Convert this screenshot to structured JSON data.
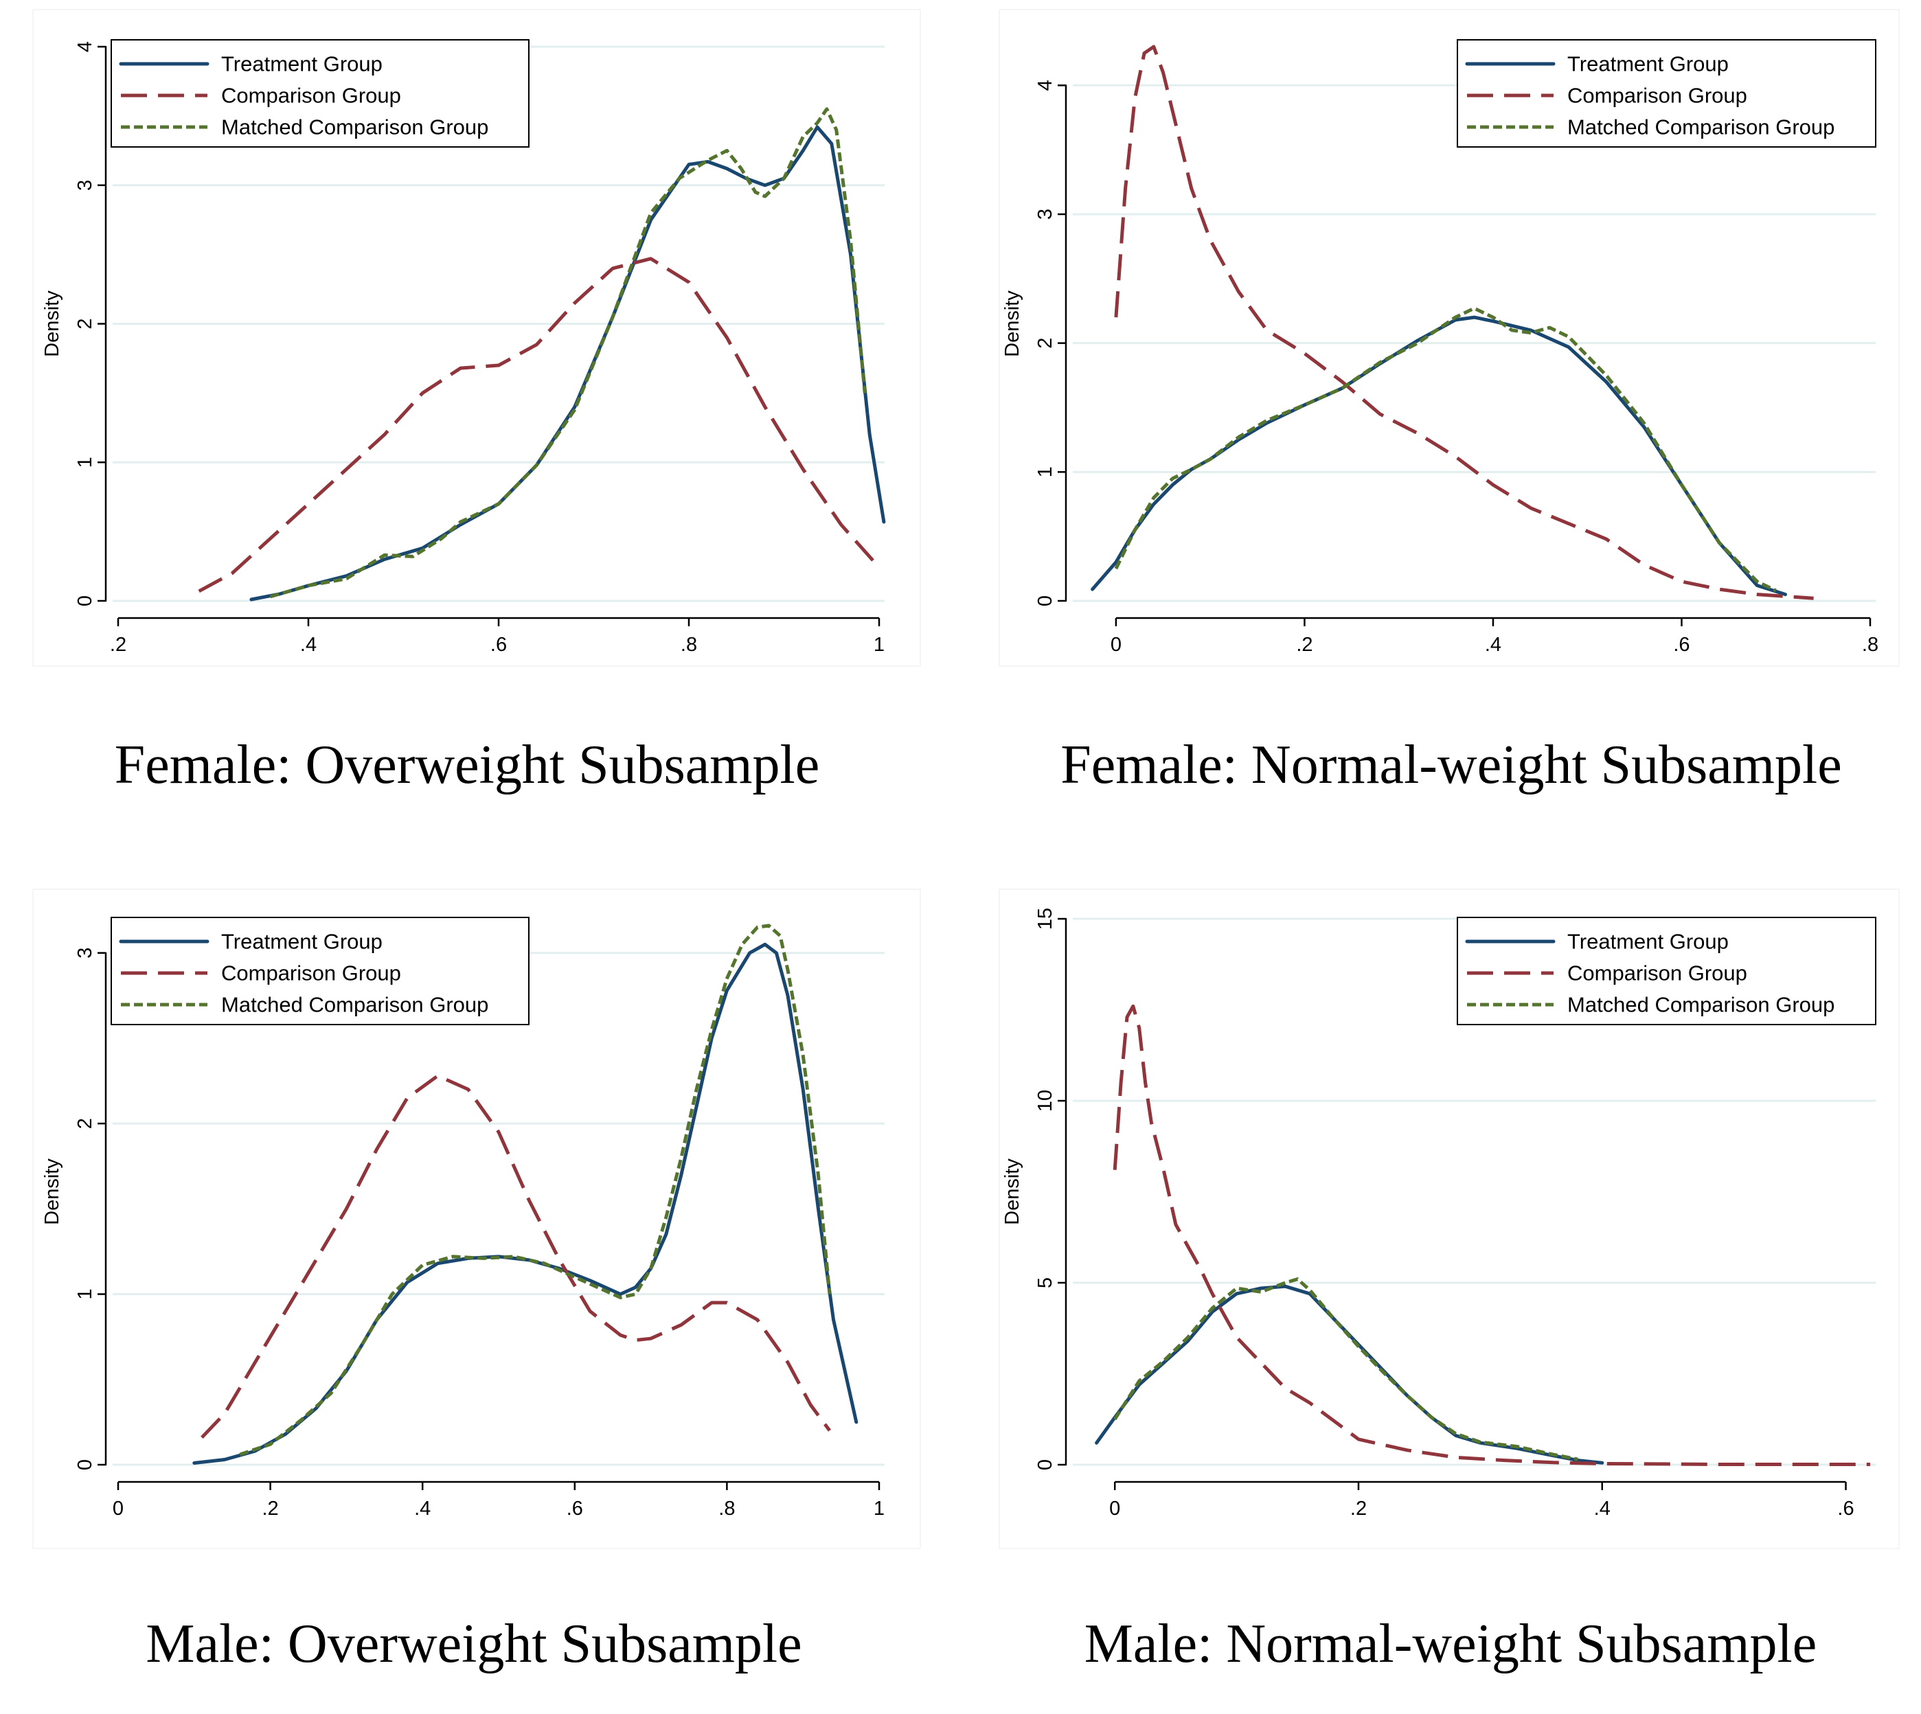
{
  "figure": {
    "background": "#ffffff",
    "gridColor": "#e3eeee"
  },
  "series_styles": [
    {
      "key": "treatment",
      "name": "Treatment Group",
      "color": "#1a476f",
      "dash": "solid"
    },
    {
      "key": "comparison",
      "name": "Comparison Group",
      "color": "#90353b",
      "dash": "long-dash"
    },
    {
      "key": "matched",
      "name": "Matched Comparison Group",
      "color": "#55752f",
      "dash": "short-dash"
    }
  ],
  "chart_data": [
    {
      "type": "line",
      "title": "Female: Overweight Subsample",
      "xlabel": "",
      "ylabel": "Density",
      "xlim": [
        0.2,
        1.0
      ],
      "ylim": [
        0,
        4
      ],
      "xticks": [
        0.2,
        0.4,
        0.6,
        0.8,
        1.0
      ],
      "xtick_labels": [
        ".2",
        ".4",
        ".6",
        ".8",
        "1"
      ],
      "yticks": [
        0,
        1,
        2,
        3,
        4
      ],
      "ytick_labels": [
        "0",
        "1",
        "2",
        "3",
        "4"
      ],
      "legend": "top-left",
      "grid": true,
      "series": [
        {
          "name": "Treatment Group",
          "x": [
            0.34,
            0.37,
            0.4,
            0.44,
            0.48,
            0.52,
            0.56,
            0.6,
            0.64,
            0.68,
            0.72,
            0.76,
            0.8,
            0.82,
            0.84,
            0.86,
            0.88,
            0.9,
            0.92,
            0.935,
            0.95,
            0.97,
            0.99,
            1.005
          ],
          "y": [
            0.01,
            0.05,
            0.11,
            0.18,
            0.3,
            0.38,
            0.55,
            0.7,
            0.98,
            1.4,
            2.05,
            2.75,
            3.15,
            3.17,
            3.12,
            3.05,
            3.0,
            3.05,
            3.25,
            3.42,
            3.3,
            2.5,
            1.2,
            0.57
          ]
        },
        {
          "name": "Comparison Group",
          "x": [
            0.285,
            0.32,
            0.36,
            0.4,
            0.44,
            0.48,
            0.52,
            0.56,
            0.6,
            0.64,
            0.68,
            0.72,
            0.76,
            0.8,
            0.84,
            0.88,
            0.92,
            0.96,
            0.995
          ],
          "y": [
            0.07,
            0.2,
            0.45,
            0.7,
            0.95,
            1.2,
            1.5,
            1.68,
            1.7,
            1.85,
            2.15,
            2.4,
            2.47,
            2.3,
            1.9,
            1.4,
            0.95,
            0.55,
            0.28
          ]
        },
        {
          "name": "Matched Comparison Group",
          "x": [
            0.36,
            0.4,
            0.44,
            0.48,
            0.51,
            0.54,
            0.56,
            0.6,
            0.64,
            0.68,
            0.72,
            0.76,
            0.79,
            0.82,
            0.84,
            0.855,
            0.87,
            0.88,
            0.9,
            0.92,
            0.935,
            0.945,
            0.955,
            0.97,
            0.985
          ],
          "y": [
            0.03,
            0.11,
            0.16,
            0.33,
            0.32,
            0.45,
            0.57,
            0.7,
            0.98,
            1.38,
            2.05,
            2.8,
            3.05,
            3.18,
            3.25,
            3.12,
            2.95,
            2.92,
            3.05,
            3.35,
            3.45,
            3.55,
            3.4,
            2.6,
            1.5
          ]
        }
      ]
    },
    {
      "type": "line",
      "title": "Female: Normal-weight Subsample",
      "xlabel": "",
      "ylabel": "Density",
      "xlim": [
        -0.04,
        0.8
      ],
      "ylim": [
        0,
        4.3
      ],
      "xticks": [
        0,
        0.2,
        0.4,
        0.6,
        0.8
      ],
      "xtick_labels": [
        "0",
        ".2",
        ".4",
        ".6",
        ".8"
      ],
      "yticks": [
        0,
        1,
        2,
        3,
        4
      ],
      "ytick_labels": [
        "0",
        "1",
        "2",
        "3",
        "4"
      ],
      "legend": "top-right",
      "grid": true,
      "series": [
        {
          "name": "Treatment Group",
          "x": [
            -0.025,
            0.0,
            0.02,
            0.04,
            0.06,
            0.08,
            0.1,
            0.13,
            0.16,
            0.2,
            0.24,
            0.28,
            0.32,
            0.36,
            0.38,
            0.4,
            0.44,
            0.48,
            0.52,
            0.56,
            0.6,
            0.64,
            0.68,
            0.71
          ],
          "y": [
            0.09,
            0.3,
            0.55,
            0.75,
            0.9,
            1.02,
            1.1,
            1.25,
            1.38,
            1.52,
            1.65,
            1.84,
            2.02,
            2.18,
            2.2,
            2.17,
            2.1,
            1.97,
            1.7,
            1.35,
            0.9,
            0.45,
            0.12,
            0.05
          ]
        },
        {
          "name": "Comparison Group",
          "x": [
            0.0,
            0.01,
            0.02,
            0.03,
            0.04,
            0.05,
            0.06,
            0.08,
            0.1,
            0.13,
            0.16,
            0.2,
            0.24,
            0.28,
            0.32,
            0.36,
            0.4,
            0.44,
            0.48,
            0.52,
            0.56,
            0.6,
            0.64,
            0.68,
            0.74
          ],
          "y": [
            2.2,
            3.2,
            3.9,
            4.25,
            4.3,
            4.1,
            3.8,
            3.2,
            2.8,
            2.4,
            2.1,
            1.92,
            1.7,
            1.45,
            1.3,
            1.12,
            0.9,
            0.72,
            0.6,
            0.48,
            0.28,
            0.15,
            0.09,
            0.05,
            0.02
          ]
        },
        {
          "name": "Matched Comparison Group",
          "x": [
            0.0,
            0.02,
            0.04,
            0.06,
            0.08,
            0.1,
            0.13,
            0.16,
            0.2,
            0.24,
            0.28,
            0.32,
            0.36,
            0.38,
            0.4,
            0.42,
            0.44,
            0.46,
            0.48,
            0.52,
            0.56,
            0.6,
            0.64,
            0.68,
            0.7
          ],
          "y": [
            0.25,
            0.55,
            0.8,
            0.95,
            1.02,
            1.1,
            1.27,
            1.4,
            1.52,
            1.65,
            1.85,
            2.0,
            2.2,
            2.27,
            2.2,
            2.1,
            2.08,
            2.12,
            2.05,
            1.75,
            1.38,
            0.9,
            0.45,
            0.15,
            0.08
          ]
        }
      ]
    },
    {
      "type": "line",
      "title": "Male: Overweight Subsample",
      "xlabel": "",
      "ylabel": "Density",
      "xlim": [
        0,
        1.0
      ],
      "ylim": [
        0,
        3.2
      ],
      "xticks": [
        0,
        0.2,
        0.4,
        0.6,
        0.8,
        1.0
      ],
      "xtick_labels": [
        "0",
        ".2",
        ".4",
        ".6",
        ".8",
        "1"
      ],
      "yticks": [
        0,
        1,
        2,
        3
      ],
      "ytick_labels": [
        "0",
        "1",
        "2",
        "3"
      ],
      "legend": "top-left",
      "grid": true,
      "series": [
        {
          "name": "Treatment Group",
          "x": [
            0.1,
            0.14,
            0.18,
            0.22,
            0.26,
            0.3,
            0.34,
            0.38,
            0.42,
            0.46,
            0.5,
            0.54,
            0.58,
            0.62,
            0.66,
            0.68,
            0.7,
            0.72,
            0.74,
            0.76,
            0.78,
            0.8,
            0.83,
            0.85,
            0.865,
            0.88,
            0.9,
            0.92,
            0.94,
            0.97
          ],
          "y": [
            0.01,
            0.03,
            0.08,
            0.18,
            0.33,
            0.55,
            0.85,
            1.07,
            1.18,
            1.21,
            1.22,
            1.2,
            1.15,
            1.08,
            1.0,
            1.04,
            1.15,
            1.35,
            1.7,
            2.1,
            2.5,
            2.78,
            3.0,
            3.05,
            3.0,
            2.75,
            2.2,
            1.5,
            0.85,
            0.25
          ]
        },
        {
          "name": "Comparison Group",
          "x": [
            0.11,
            0.14,
            0.18,
            0.22,
            0.26,
            0.3,
            0.34,
            0.38,
            0.42,
            0.46,
            0.5,
            0.54,
            0.58,
            0.62,
            0.66,
            0.68,
            0.7,
            0.74,
            0.78,
            0.8,
            0.84,
            0.88,
            0.91,
            0.935
          ],
          "y": [
            0.16,
            0.3,
            0.6,
            0.9,
            1.2,
            1.5,
            1.85,
            2.15,
            2.28,
            2.2,
            1.95,
            1.55,
            1.2,
            0.9,
            0.76,
            0.73,
            0.74,
            0.82,
            0.95,
            0.95,
            0.85,
            0.6,
            0.35,
            0.2
          ]
        },
        {
          "name": "Matched Comparison Group",
          "x": [
            0.16,
            0.2,
            0.24,
            0.28,
            0.32,
            0.36,
            0.4,
            0.44,
            0.48,
            0.52,
            0.56,
            0.6,
            0.64,
            0.66,
            0.68,
            0.7,
            0.72,
            0.74,
            0.76,
            0.78,
            0.8,
            0.82,
            0.84,
            0.855,
            0.87,
            0.88,
            0.9,
            0.92,
            0.935
          ],
          "y": [
            0.06,
            0.12,
            0.26,
            0.42,
            0.7,
            1.0,
            1.17,
            1.22,
            1.21,
            1.22,
            1.18,
            1.1,
            1.02,
            0.98,
            1.0,
            1.15,
            1.45,
            1.8,
            2.2,
            2.55,
            2.85,
            3.05,
            3.15,
            3.16,
            3.1,
            2.9,
            2.4,
            1.7,
            1.0
          ]
        }
      ]
    },
    {
      "type": "line",
      "title": "Male: Normal-weight Subsample",
      "xlabel": "",
      "ylabel": "Density",
      "xlim": [
        -0.03,
        0.62
      ],
      "ylim": [
        0,
        15
      ],
      "xticks": [
        0,
        0.2,
        0.4,
        0.6
      ],
      "xtick_labels": [
        "0",
        ".2",
        ".4",
        ".6"
      ],
      "yticks": [
        0,
        5,
        10,
        15
      ],
      "ytick_labels": [
        "0",
        "5",
        "10",
        "15"
      ],
      "legend": "top-right",
      "grid": true,
      "series": [
        {
          "name": "Treatment Group",
          "x": [
            -0.015,
            0.0,
            0.02,
            0.04,
            0.06,
            0.08,
            0.1,
            0.12,
            0.14,
            0.16,
            0.18,
            0.2,
            0.22,
            0.24,
            0.26,
            0.28,
            0.3,
            0.33,
            0.36,
            0.38,
            0.4
          ],
          "y": [
            0.6,
            1.3,
            2.2,
            2.8,
            3.4,
            4.2,
            4.7,
            4.85,
            4.9,
            4.7,
            4.0,
            3.3,
            2.6,
            1.9,
            1.3,
            0.8,
            0.6,
            0.45,
            0.25,
            0.12,
            0.05
          ]
        },
        {
          "name": "Comparison Group",
          "x": [
            0.0,
            0.005,
            0.01,
            0.015,
            0.02,
            0.025,
            0.03,
            0.04,
            0.05,
            0.06,
            0.07,
            0.08,
            0.1,
            0.12,
            0.14,
            0.16,
            0.18,
            0.2,
            0.24,
            0.28,
            0.32,
            0.36,
            0.4,
            0.45,
            0.5,
            0.55,
            0.62
          ],
          "y": [
            8.1,
            10.5,
            12.3,
            12.6,
            12.0,
            10.5,
            9.4,
            8.1,
            6.6,
            6.0,
            5.4,
            4.7,
            3.5,
            2.8,
            2.1,
            1.7,
            1.2,
            0.7,
            0.4,
            0.2,
            0.12,
            0.06,
            0.03,
            0.02,
            0.01,
            0.01,
            0.01
          ]
        },
        {
          "name": "Matched Comparison Group",
          "x": [
            0.0,
            0.02,
            0.04,
            0.06,
            0.08,
            0.1,
            0.12,
            0.14,
            0.15,
            0.16,
            0.18,
            0.2,
            0.22,
            0.24,
            0.26,
            0.28,
            0.3,
            0.33,
            0.36,
            0.38
          ],
          "y": [
            1.25,
            2.3,
            2.85,
            3.5,
            4.3,
            4.85,
            4.75,
            5.0,
            5.1,
            4.8,
            4.0,
            3.25,
            2.55,
            1.9,
            1.3,
            0.85,
            0.62,
            0.5,
            0.28,
            0.15
          ]
        }
      ]
    }
  ]
}
